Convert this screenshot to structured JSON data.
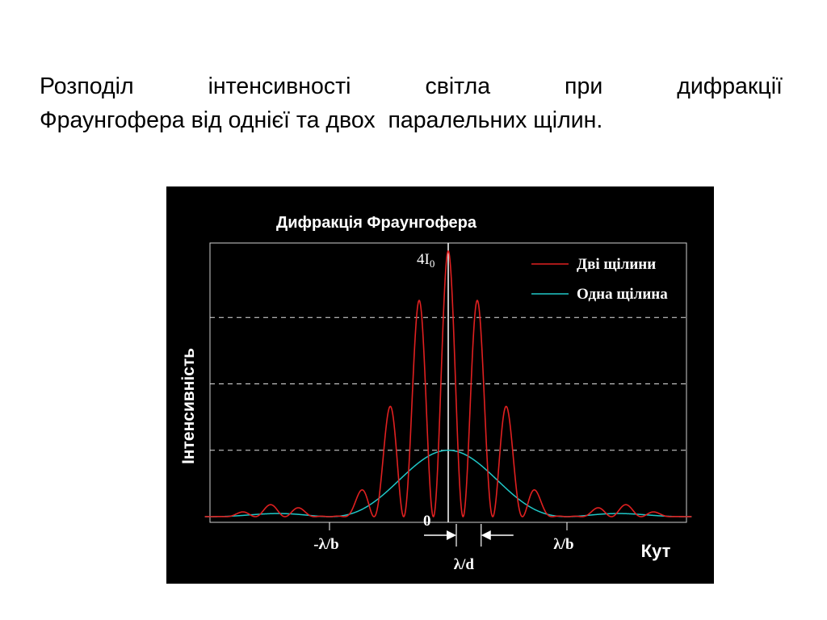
{
  "heading": {
    "line1_words": [
      "Розподіл",
      "інтенсивності",
      "світла",
      "при",
      "дифракції"
    ],
    "line2": "Фраунгофера від однієї та двох  паралельних щілин."
  },
  "colors": {
    "background": "#000000",
    "axis": "#cfcfcf",
    "grid": "#e0e0e0",
    "two_slits": "#e02020",
    "one_slit": "#20c8c8",
    "text": "#ffffff"
  },
  "chart_data": {
    "type": "line",
    "title": "Дифракція Фраунгофера",
    "xlabel": "Кут",
    "ylabel": "Інтенсивність",
    "x_ticks": [
      "-λ/b",
      "λ/b"
    ],
    "x_tick_values": [
      -1,
      1
    ],
    "interval_label": "λ/d",
    "interval_value": 0.25,
    "y_ticks": [
      "0"
    ],
    "y_peak_label": "4I",
    "y_peak_subscript": "0",
    "xlim": [
      -2.05,
      2.05
    ],
    "ylim": [
      0,
      4
    ],
    "grid": "horizontal-dashed",
    "grid_values": [
      1,
      2,
      3
    ],
    "legend_position": "top-right",
    "series": [
      {
        "name": "Дві щілини",
        "color": "#e02020",
        "formula": "4*sinc^2(x)*cos^2(4*pi*x)"
      },
      {
        "name": "Одна щілина",
        "color": "#20c8c8",
        "formula": "sinc^2(x)"
      }
    ]
  }
}
